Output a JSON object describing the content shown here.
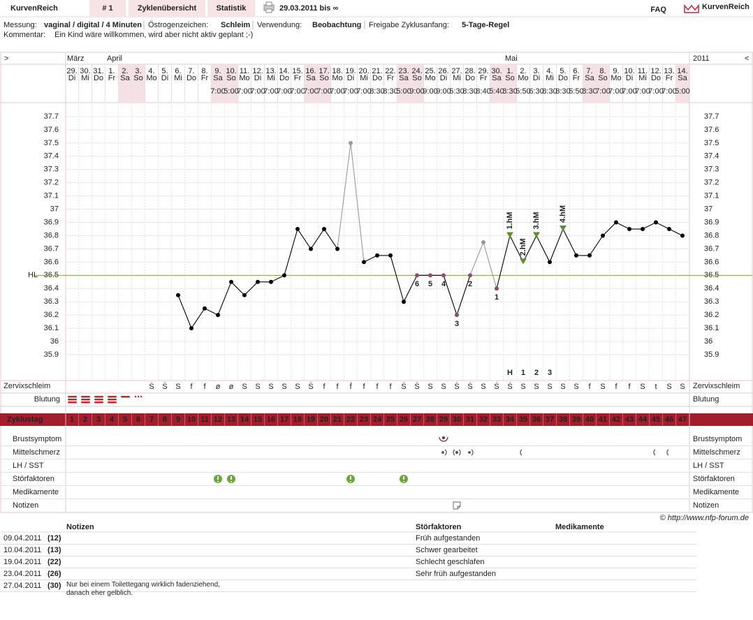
{
  "header": {
    "brand": "KurvenReich",
    "cycle": "# 1",
    "tabs": [
      "Zyklenübersicht",
      "Statistik"
    ],
    "period": "29.03.2011 bis ∞",
    "faq": "FAQ",
    "logo": "KurvenReich"
  },
  "info": {
    "fields": [
      {
        "label": "Messung:",
        "value": "vaginal / digital / 4 Minuten"
      },
      {
        "label": "Östrogenzeichen:",
        "value": "Schleim"
      },
      {
        "label": "Verwendung:",
        "value": "Beobachtung"
      },
      {
        "label": "Freigabe Zyklusanfang:",
        "value": "5-Tage-Regel"
      }
    ],
    "comment_label": "Kommentar:",
    "comment": "Ein Kind wäre willkommen, wird aber nicht aktiv geplant ;-)"
  },
  "chart": {
    "type": "line",
    "nav_left": ">",
    "nav_right": "<",
    "year": "2011",
    "months": [
      {
        "label": "März",
        "day": 1
      },
      {
        "label": "April",
        "day": 4
      },
      {
        "label": "Mai",
        "day": 34
      }
    ],
    "days": [
      1,
      2,
      3,
      4,
      5,
      6,
      7,
      8,
      9,
      10,
      11,
      12,
      13,
      14,
      15,
      16,
      17,
      18,
      19,
      20,
      21,
      22,
      23,
      24,
      25,
      26,
      27,
      28,
      29,
      30,
      31,
      32,
      33,
      34,
      35,
      36,
      37,
      38,
      39,
      40,
      41,
      42,
      43,
      44,
      45,
      46,
      47
    ],
    "dates": [
      "29.",
      "30.",
      "31.",
      "1.",
      "2.",
      "3.",
      "4.",
      "5.",
      "6.",
      "7.",
      "8.",
      "9.",
      "10.",
      "11.",
      "12.",
      "13.",
      "14.",
      "15.",
      "16.",
      "17.",
      "18.",
      "19.",
      "20.",
      "21.",
      "22.",
      "23.",
      "24.",
      "25.",
      "26.",
      "27.",
      "28.",
      "29.",
      "30.",
      "1.",
      "2.",
      "3.",
      "4.",
      "5.",
      "6.",
      "7.",
      "8.",
      "9.",
      "10.",
      "11.",
      "12.",
      "13.",
      "14."
    ],
    "weekdays": [
      "Di",
      "Mi",
      "Do",
      "Fr",
      "Sa",
      "So",
      "Mo",
      "Di",
      "Mi",
      "Do",
      "Fr",
      "Sa",
      "So",
      "Mo",
      "Di",
      "Mi",
      "Do",
      "Fr",
      "Sa",
      "So",
      "Mo",
      "Di",
      "Mi",
      "Do",
      "Fr",
      "Sa",
      "So",
      "Mo",
      "Di",
      "Mi",
      "Do",
      "Fr",
      "Sa",
      "So",
      "Mo",
      "Di",
      "Mi",
      "Do",
      "Fr",
      "Sa",
      "So",
      "Mo",
      "Di",
      "Mi",
      "Do",
      "Fr",
      "Sa"
    ],
    "times": [
      null,
      null,
      null,
      null,
      null,
      null,
      null,
      null,
      null,
      null,
      null,
      "7:00",
      "5:00",
      "7:00",
      "7:00",
      "7:00",
      "7:00",
      "7:00",
      "7:00",
      "7:00",
      "7:00",
      "7:00",
      "7:00",
      "8:30",
      "8:30",
      "5:00",
      "9:00",
      "9:00",
      "9:00",
      "5:30",
      "8:30",
      "8:40",
      "5:40",
      "8:30",
      "5:50",
      "6:30",
      "8:30",
      "8:30",
      "5:50",
      "8:30",
      "7:00",
      "7:00",
      "7:00",
      "7:00",
      "7:00",
      "7:00",
      "5:00"
    ],
    "values": [
      null,
      null,
      null,
      null,
      null,
      null,
      null,
      null,
      36.35,
      36.1,
      36.25,
      36.2,
      36.45,
      36.35,
      36.45,
      36.45,
      36.5,
      36.85,
      36.7,
      36.85,
      36.7,
      37.5,
      36.6,
      36.65,
      36.65,
      36.3,
      36.5,
      36.5,
      36.5,
      36.2,
      36.5,
      36.75,
      36.4,
      36.8,
      36.6,
      36.8,
      36.6,
      36.85,
      36.65,
      36.65,
      36.8,
      36.9,
      36.85,
      36.85,
      36.9,
      36.85,
      36.8
    ],
    "labels_below": [
      null,
      null,
      null,
      null,
      null,
      null,
      null,
      null,
      null,
      null,
      null,
      null,
      null,
      null,
      null,
      null,
      null,
      null,
      null,
      null,
      null,
      null,
      null,
      null,
      null,
      null,
      "6",
      "5",
      "4",
      "3",
      "2",
      null,
      "1",
      null,
      null,
      null,
      null,
      null,
      null,
      null,
      null,
      null,
      null,
      null,
      null,
      null,
      null
    ],
    "labels_above": [
      null,
      null,
      null,
      null,
      null,
      null,
      null,
      null,
      null,
      null,
      null,
      null,
      null,
      null,
      null,
      null,
      null,
      null,
      null,
      null,
      null,
      null,
      null,
      null,
      null,
      null,
      null,
      null,
      null,
      null,
      null,
      null,
      null,
      "1.hM",
      "2.hM",
      "3.hM",
      null,
      "4.hM",
      null,
      null,
      null,
      null,
      null,
      null,
      null,
      null,
      null
    ],
    "marker_row": [
      null,
      null,
      null,
      null,
      null,
      null,
      null,
      null,
      null,
      null,
      null,
      null,
      null,
      null,
      null,
      null,
      null,
      null,
      null,
      null,
      null,
      null,
      null,
      null,
      null,
      null,
      null,
      null,
      null,
      null,
      null,
      null,
      null,
      "H",
      "1",
      "2",
      "3",
      null,
      null,
      null,
      null,
      null,
      null,
      null,
      null,
      null,
      null
    ],
    "excluded_days": [
      22,
      32
    ],
    "ylim": [
      35.9,
      37.7
    ],
    "yticks": [
      35.9,
      36,
      36.1,
      36.2,
      36.3,
      36.4,
      36.5,
      36.6,
      36.7,
      36.8,
      36.9,
      37,
      37.1,
      37.2,
      37.3,
      37.4,
      37.5,
      37.6,
      37.7
    ],
    "grid": true,
    "coverline": {
      "label": "HL",
      "value": 36.5,
      "color": "#7aa64a"
    },
    "color": "#000000",
    "excluded_color": "#999999",
    "labeled_color": "#8b5060",
    "above_color": "#5e8f2e"
  },
  "rows": {
    "mucus_label": "Zervixschleim",
    "mucus": [
      null,
      null,
      null,
      null,
      null,
      null,
      "Ṡ",
      "Ṡ",
      "S",
      "f",
      "f",
      "ø",
      "ø",
      "S",
      "S",
      "S",
      "S",
      "S",
      "Ṡ",
      "f",
      "f",
      "ḟ",
      "f",
      "f",
      "f",
      "Ṡ",
      "Ṡ",
      "S",
      "S",
      "Ṡ",
      "Ṡ",
      "S",
      "Ṡ",
      "Ṡ",
      "S",
      "S",
      "S",
      "S",
      "S",
      "f",
      "S",
      "f",
      "f",
      "S",
      "t",
      "S",
      "S"
    ],
    "bleeding_label": "Blutung",
    "cycle_day_label": "Zyklustag",
    "symptom_labels": [
      "Brustsymptom",
      "Mittelschmerz",
      "LH / SST",
      "Störfaktoren",
      "Medikamente",
      "Notizen"
    ]
  },
  "footer": {
    "copyright": "© http://www.nfp-forum.de"
  },
  "notes_table": {
    "headers": [
      "Notizen",
      "Störfaktoren",
      "Medikamente"
    ],
    "rows": [
      [
        "09.04.2011",
        "(12)",
        null,
        "Früh aufgestanden",
        null
      ],
      [
        "10.04.2011",
        "(13)",
        null,
        "Schwer gearbeitet",
        null
      ],
      [
        "19.04.2011",
        "(22)",
        null,
        "Schlecht geschlafen",
        null
      ],
      [
        "23.04.2011",
        "(26)",
        null,
        "Sehr früh aufgestanden",
        null
      ],
      [
        "27.04.2011",
        "(30)",
        "Nur bei einem Toilettegang wirklich fadenziehend, danach eher gelblich.",
        null,
        null
      ]
    ]
  }
}
